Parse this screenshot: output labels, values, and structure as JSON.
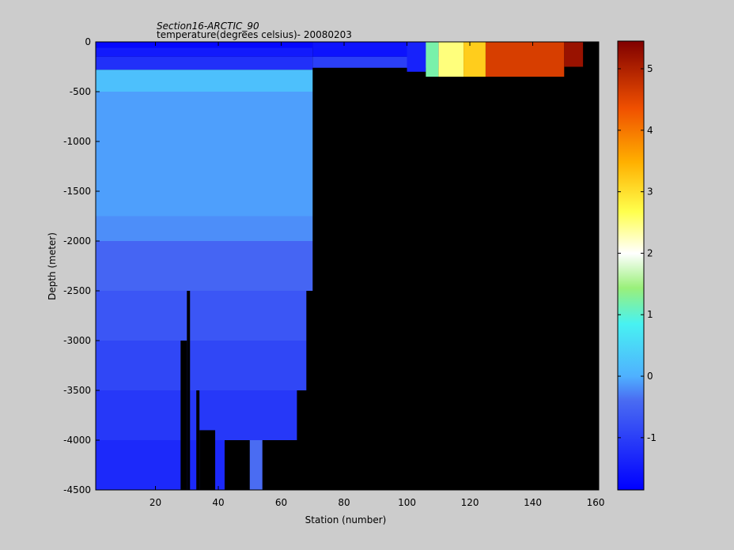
{
  "chart_data": {
    "type": "heatmap",
    "title": "Section16-ARCTIC_90",
    "subtitle": "temperature(degrees  celsius)- 20080203",
    "xlabel": "Station (number)",
    "ylabel": "Depth (meter)",
    "xlim": [
      1,
      161
    ],
    "ylim": [
      -4500,
      0
    ],
    "xticks": [
      20,
      40,
      60,
      80,
      100,
      120,
      140,
      160
    ],
    "yticks": [
      0,
      -500,
      -1000,
      -1500,
      -2000,
      -2500,
      -3000,
      -3500,
      -4000,
      -4500
    ],
    "colorbar": {
      "min": -1.85,
      "max": 5.45,
      "ticks": [
        -1,
        0,
        1,
        2,
        3,
        4,
        5
      ],
      "colormap": "jet-like"
    },
    "no_data_color": "#000000",
    "value_ranges": [
      {
        "stations": [
          1,
          70
        ],
        "depth": [
          0,
          -150
        ],
        "temperature": -1.5
      },
      {
        "stations": [
          1,
          70
        ],
        "depth": [
          -150,
          -280
        ],
        "temperature": -1.2
      },
      {
        "stations": [
          1,
          70
        ],
        "depth": [
          -280,
          -500
        ],
        "temperature": 0.2
      },
      {
        "stations": [
          1,
          70
        ],
        "depth": [
          -500,
          -1750
        ],
        "temperature": -0.1
      },
      {
        "stations": [
          1,
          70
        ],
        "depth": [
          -1750,
          -2000
        ],
        "temperature": -0.2
      },
      {
        "stations": [
          1,
          70
        ],
        "depth": [
          -2000,
          -2500
        ],
        "temperature": -0.5
      },
      {
        "stations": [
          1,
          68
        ],
        "depth": [
          -2500,
          -3000
        ],
        "temperature": -0.7
      },
      {
        "stations": [
          1,
          68
        ],
        "depth": [
          -3000,
          -3500
        ],
        "temperature": -0.9
      },
      {
        "stations": [
          1,
          65
        ],
        "depth": [
          -3500,
          -4000
        ],
        "temperature": -1.1
      },
      {
        "stations": [
          1,
          54
        ],
        "depth": [
          -4000,
          -4500
        ],
        "temperature": -1.3
      },
      {
        "stations": [
          110,
          118
        ],
        "depth": [
          0,
          -350
        ],
        "temperature": 2.5
      },
      {
        "stations": [
          125,
          150
        ],
        "depth": [
          0,
          -350
        ],
        "temperature": 4.6
      },
      {
        "stations": [
          150,
          156
        ],
        "depth": [
          0,
          -250
        ],
        "temperature": 5.2
      }
    ]
  }
}
